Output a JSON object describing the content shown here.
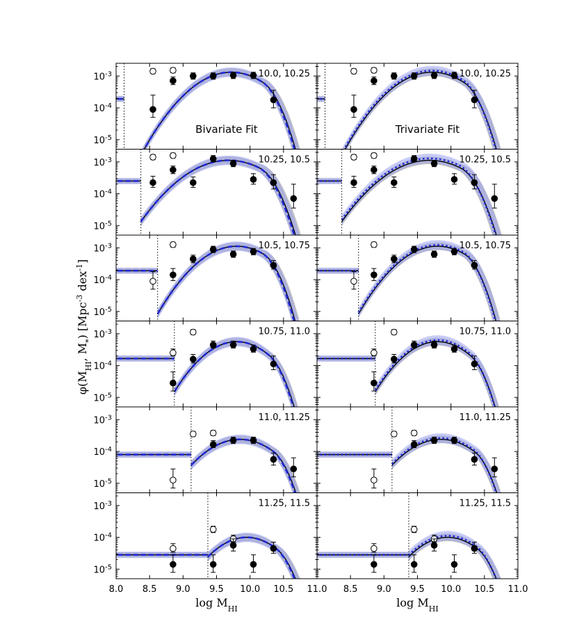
{
  "chart_data": {
    "type": "scatter",
    "ylabel": "φ(M_HI, M_*) [Mpc^-3 dex^-1]",
    "xlabel": "log M_HI",
    "xlim": [
      8.0,
      11.0
    ],
    "ylim_log10": [
      -5.3,
      -2.6
    ],
    "x_ticks": [
      "8.0",
      "8.5",
      "9.0",
      "9.5",
      "10.0",
      "10.5",
      "11.0"
    ],
    "y_ticks": [
      {
        "base": "10",
        "exp": "-3",
        "value": -3
      },
      {
        "base": "10",
        "exp": "-4",
        "value": -4
      },
      {
        "base": "10",
        "exp": "-5",
        "value": -5
      }
    ],
    "columns": [
      {
        "fit_label": "Bivariate Fit",
        "fit_label_row": 0
      },
      {
        "fit_label": "Trivariate Fit",
        "fit_label_row": 0
      }
    ],
    "rows": [
      {
        "label": "10.0, 10.25",
        "limit": 8.12,
        "filled": [
          [
            8.55,
            -4.05,
            0.45,
            0.25
          ],
          [
            8.85,
            -3.15,
            0.12,
            0.12
          ],
          [
            9.15,
            -3.0,
            0.1,
            0.1
          ],
          [
            9.45,
            -3.0,
            0.1,
            0.1
          ],
          [
            9.75,
            -2.98,
            0.1,
            0.1
          ],
          [
            10.05,
            -2.98,
            0.1,
            0.1
          ],
          [
            10.35,
            -3.75,
            0.3,
            0.25
          ]
        ],
        "open": [
          [
            8.55,
            -2.85,
            0.08,
            0.08
          ],
          [
            8.85,
            -2.82,
            0.08,
            0.08
          ]
        ],
        "bi": {
          "left": -3.72,
          "peak": -2.88,
          "mu": 9.72,
          "sig": 0.62,
          "drop": 10.2,
          "k": 2.2
        },
        "tri_shift": 0.05
      },
      {
        "label": "10.25, 10.5",
        "limit": 8.37,
        "filled": [
          [
            8.55,
            -3.65,
            0.2,
            0.15
          ],
          [
            8.85,
            -3.25,
            0.12,
            0.12
          ],
          [
            9.15,
            -3.65,
            0.18,
            0.15
          ],
          [
            9.45,
            -2.9,
            0.1,
            0.1
          ],
          [
            9.75,
            -3.05,
            0.1,
            0.1
          ],
          [
            10.05,
            -3.55,
            0.18,
            0.15
          ],
          [
            10.35,
            -3.65,
            0.25,
            0.2
          ],
          [
            10.65,
            -4.15,
            0.45,
            0.3
          ]
        ],
        "open": [
          [
            8.55,
            -2.85,
            0.08,
            0.08
          ],
          [
            8.85,
            -2.8,
            0.08,
            0.08
          ]
        ],
        "bi": {
          "left": -3.6,
          "peak": -2.95,
          "mu": 9.68,
          "sig": 0.7,
          "drop": 10.15,
          "k": 2.0
        },
        "tri_shift": 0.06
      },
      {
        "label": "10.5, 10.75",
        "limit": 8.62,
        "filled": [
          [
            8.85,
            -3.85,
            0.2,
            0.18
          ],
          [
            9.15,
            -3.35,
            0.12,
            0.12
          ],
          [
            9.45,
            -3.05,
            0.1,
            0.1
          ],
          [
            9.75,
            -3.2,
            0.1,
            0.1
          ],
          [
            10.05,
            -3.12,
            0.1,
            0.1
          ],
          [
            10.35,
            -3.55,
            0.15,
            0.12
          ]
        ],
        "open": [
          [
            8.55,
            -4.05,
            0.3,
            0.25
          ],
          [
            8.85,
            -2.9,
            0.08,
            0.08
          ]
        ],
        "bi": {
          "left": -3.72,
          "peak": -2.95,
          "mu": 9.8,
          "sig": 0.6,
          "drop": 10.2,
          "k": 2.4
        },
        "tri_shift": 0.04
      },
      {
        "label": "10.75, 11.0",
        "limit": 8.87,
        "filled": [
          [
            8.85,
            -4.55,
            0.35,
            0.25
          ],
          [
            9.15,
            -3.8,
            0.15,
            0.12
          ],
          [
            9.45,
            -3.35,
            0.12,
            0.1
          ],
          [
            9.75,
            -3.35,
            0.12,
            0.1
          ],
          [
            10.05,
            -3.48,
            0.12,
            0.1
          ],
          [
            10.35,
            -3.95,
            0.25,
            0.18
          ]
        ],
        "open": [
          [
            8.85,
            -3.6,
            0.12,
            0.1
          ],
          [
            9.15,
            -2.95,
            0.08,
            0.08
          ]
        ],
        "bi": {
          "left": -3.78,
          "peak": -3.25,
          "mu": 9.8,
          "sig": 0.55,
          "drop": 10.3,
          "k": 2.5
        },
        "tri_shift": 0.05
      },
      {
        "label": "11.0, 11.25",
        "limit": 9.12,
        "filled": [
          [
            9.45,
            -3.78,
            0.12,
            0.1
          ],
          [
            9.75,
            -3.65,
            0.1,
            0.1
          ],
          [
            10.05,
            -3.65,
            0.1,
            0.1
          ],
          [
            10.35,
            -4.25,
            0.2,
            0.18
          ],
          [
            10.65,
            -4.55,
            0.35,
            0.25
          ]
        ],
        "open": [
          [
            8.85,
            -4.9,
            0.35,
            0.25
          ],
          [
            9.15,
            -3.45,
            0.08,
            0.08
          ],
          [
            9.45,
            -3.42,
            0.08,
            0.08
          ]
        ],
        "bi": {
          "left": -4.1,
          "peak": -3.62,
          "mu": 9.85,
          "sig": 0.6,
          "drop": 10.35,
          "k": 2.5
        },
        "tri_shift": 0.04
      },
      {
        "label": "11.25, 11.5",
        "limit": 9.37,
        "filled": [
          [
            9.45,
            -4.85,
            0.3,
            0.25
          ],
          [
            9.75,
            -4.25,
            0.2,
            0.18
          ],
          [
            10.05,
            -4.85,
            0.3,
            0.25
          ],
          [
            10.35,
            -4.35,
            0.2,
            0.15
          ],
          [
            8.85,
            -4.85,
            0.3,
            0.25
          ]
        ],
        "open": [
          [
            8.85,
            -4.35,
            0.15,
            0.12
          ],
          [
            9.45,
            -3.75,
            0.1,
            0.1
          ],
          [
            9.75,
            -4.05,
            0.12,
            0.1
          ]
        ],
        "bi": {
          "left": -4.55,
          "peak": -4.0,
          "mu": 9.95,
          "sig": 0.55,
          "drop": 10.4,
          "k": 2.0
        },
        "tri_shift": 0.05
      }
    ]
  },
  "colors": {
    "data": "#000000",
    "bivariate_fit": "#1f28d4",
    "bivariate_band": "#9aa3f0",
    "model_line": "#000000",
    "model_band": "#b0b0b0",
    "limit_line": "#000000"
  }
}
